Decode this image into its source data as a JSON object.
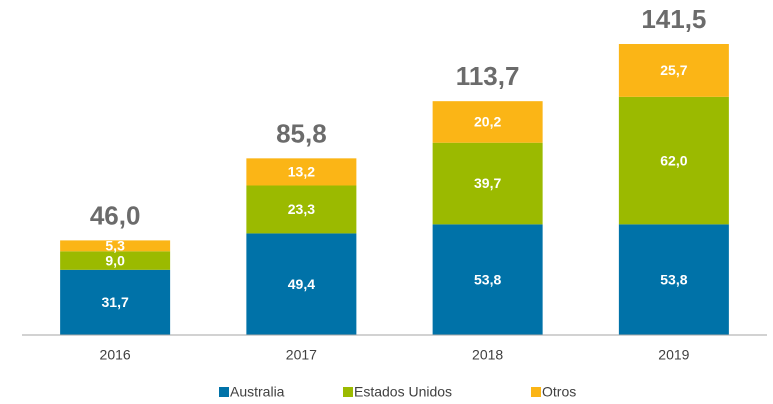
{
  "chart_data": {
    "type": "bar",
    "stacked": true,
    "categories": [
      "2016",
      "2017",
      "2018",
      "2019"
    ],
    "series": [
      {
        "name": "Australia",
        "color": "#0072a8",
        "values": [
          31.7,
          49.4,
          53.8,
          53.8
        ],
        "value_labels": [
          "31,7",
          "49,4",
          "53,8",
          "53,8"
        ]
      },
      {
        "name": "Estados Unidos",
        "color": "#9bba00",
        "values": [
          9.0,
          23.3,
          39.7,
          62.0
        ],
        "value_labels": [
          "9,0",
          "23,3",
          "39,7",
          "62,0"
        ]
      },
      {
        "name": "Otros",
        "color": "#fbb516",
        "values": [
          5.3,
          13.2,
          20.2,
          25.7
        ],
        "value_labels": [
          "5,3",
          "13,2",
          "20,2",
          "25,7"
        ]
      }
    ],
    "totals": [
      46.0,
      85.8,
      113.7,
      141.5
    ],
    "total_labels": [
      "46,0",
      "85,8",
      "113,7",
      "141,5"
    ]
  }
}
